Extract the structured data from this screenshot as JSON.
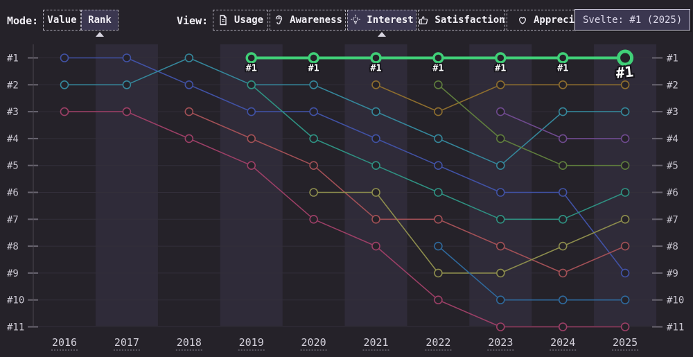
{
  "toolbar": {
    "mode_label": "Mode:",
    "modes": [
      {
        "label": "Value",
        "selected": false
      },
      {
        "label": "Rank",
        "selected": true
      }
    ],
    "view_label": "View:",
    "views": [
      {
        "label": "Usage",
        "icon": "document-icon",
        "selected": false
      },
      {
        "label": "Awareness",
        "icon": "ear-icon",
        "selected": false
      },
      {
        "label": "Interest",
        "icon": "lightbulb-icon",
        "selected": true
      },
      {
        "label": "Satisfaction",
        "icon": "thumbs-up-icon",
        "selected": false
      },
      {
        "label": "Appreciation",
        "icon": "heart-icon",
        "selected": false
      }
    ]
  },
  "tooltip": {
    "text": "Svelte: #1 (2025)"
  },
  "colors": {
    "background": "#252229",
    "band": "#2f2b39",
    "grid": "#332f3a",
    "axis": "#4a4750",
    "tick": "#6a6671",
    "label": "#c9c6d0",
    "highlight": "#40d078",
    "selected_button": "#3b3750"
  },
  "chart_data": {
    "type": "bump",
    "x_label": "",
    "y_label": "",
    "years": [
      2016,
      2017,
      2018,
      2019,
      2020,
      2021,
      2022,
      2023,
      2024,
      2025
    ],
    "rank_labels": [
      "#1",
      "#2",
      "#3",
      "#4",
      "#5",
      "#6",
      "#7",
      "#8",
      "#9",
      "#10",
      "#11"
    ],
    "banded_years": [
      2017,
      2019,
      2021,
      2023,
      2025
    ],
    "highlighted_series": "svelte-green",
    "series": [
      {
        "id": "indigo-blue",
        "color": "#4152a5",
        "highlight": false,
        "points": {
          "2016": 1,
          "2017": 1,
          "2018": 2,
          "2019": 3,
          "2020": 3,
          "2021": 4,
          "2022": 5,
          "2023": 6,
          "2024": 6,
          "2025": 9
        }
      },
      {
        "id": "teal-cyan",
        "color": "#35879b",
        "highlight": false,
        "points": {
          "2016": 2,
          "2017": 2,
          "2018": 1,
          "2019": 2,
          "2020": 2,
          "2021": 3,
          "2022": 4,
          "2023": 5,
          "2024": 3,
          "2025": 3
        }
      },
      {
        "id": "crimson",
        "color": "#9c3f66",
        "highlight": false,
        "points": {
          "2016": 3,
          "2017": 3,
          "2018": 4,
          "2019": 5,
          "2020": 7,
          "2021": 8,
          "2022": 10,
          "2023": 11,
          "2024": 11,
          "2025": 11
        }
      },
      {
        "id": "dim-red",
        "color": "#a25056",
        "highlight": false,
        "points": {
          "2018": 3,
          "2019": 4,
          "2020": 5,
          "2021": 7,
          "2022": 7,
          "2023": 8,
          "2024": 9,
          "2025": 8
        }
      },
      {
        "id": "sea-green",
        "color": "#2f9182",
        "highlight": false,
        "points": {
          "2019": 2,
          "2020": 4,
          "2021": 5,
          "2022": 6,
          "2023": 7,
          "2024": 7,
          "2025": 6
        }
      },
      {
        "id": "olive",
        "color": "#8d8d4d",
        "highlight": false,
        "points": {
          "2020": 6,
          "2021": 6,
          "2022": 9,
          "2023": 9,
          "2024": 8,
          "2025": 7
        }
      },
      {
        "id": "gold",
        "color": "#8e6e2e",
        "highlight": false,
        "points": {
          "2021": 2,
          "2022": 3,
          "2023": 2,
          "2024": 2,
          "2025": 2
        }
      },
      {
        "id": "moss-green",
        "color": "#5f7d3d",
        "highlight": false,
        "points": {
          "2022": 2,
          "2023": 4,
          "2024": 5,
          "2025": 5
        }
      },
      {
        "id": "steel-blue",
        "color": "#2f699c",
        "highlight": false,
        "points": {
          "2022": 8,
          "2023": 10,
          "2024": 10,
          "2025": 10
        }
      },
      {
        "id": "purple",
        "color": "#6f4a8f",
        "highlight": false,
        "points": {
          "2023": 3,
          "2024": 4,
          "2025": 4
        }
      },
      {
        "id": "svelte-green",
        "color": "#40d078",
        "highlight": true,
        "points": {
          "2019": 1,
          "2020": 1,
          "2021": 1,
          "2022": 1,
          "2023": 1,
          "2024": 1,
          "2025": 1
        }
      }
    ],
    "point_labels": [
      {
        "year": 2019,
        "text": "#1",
        "big": false
      },
      {
        "year": 2020,
        "text": "#1",
        "big": false
      },
      {
        "year": 2021,
        "text": "#1",
        "big": false
      },
      {
        "year": 2022,
        "text": "#1",
        "big": false
      },
      {
        "year": 2023,
        "text": "#1",
        "big": false
      },
      {
        "year": 2024,
        "text": "#1",
        "big": false
      },
      {
        "year": 2025,
        "text": "#1",
        "big": true
      }
    ],
    "grid": true,
    "legend": "none",
    "x_range": [
      2016,
      2025
    ],
    "rank_range": [
      1,
      11
    ]
  }
}
